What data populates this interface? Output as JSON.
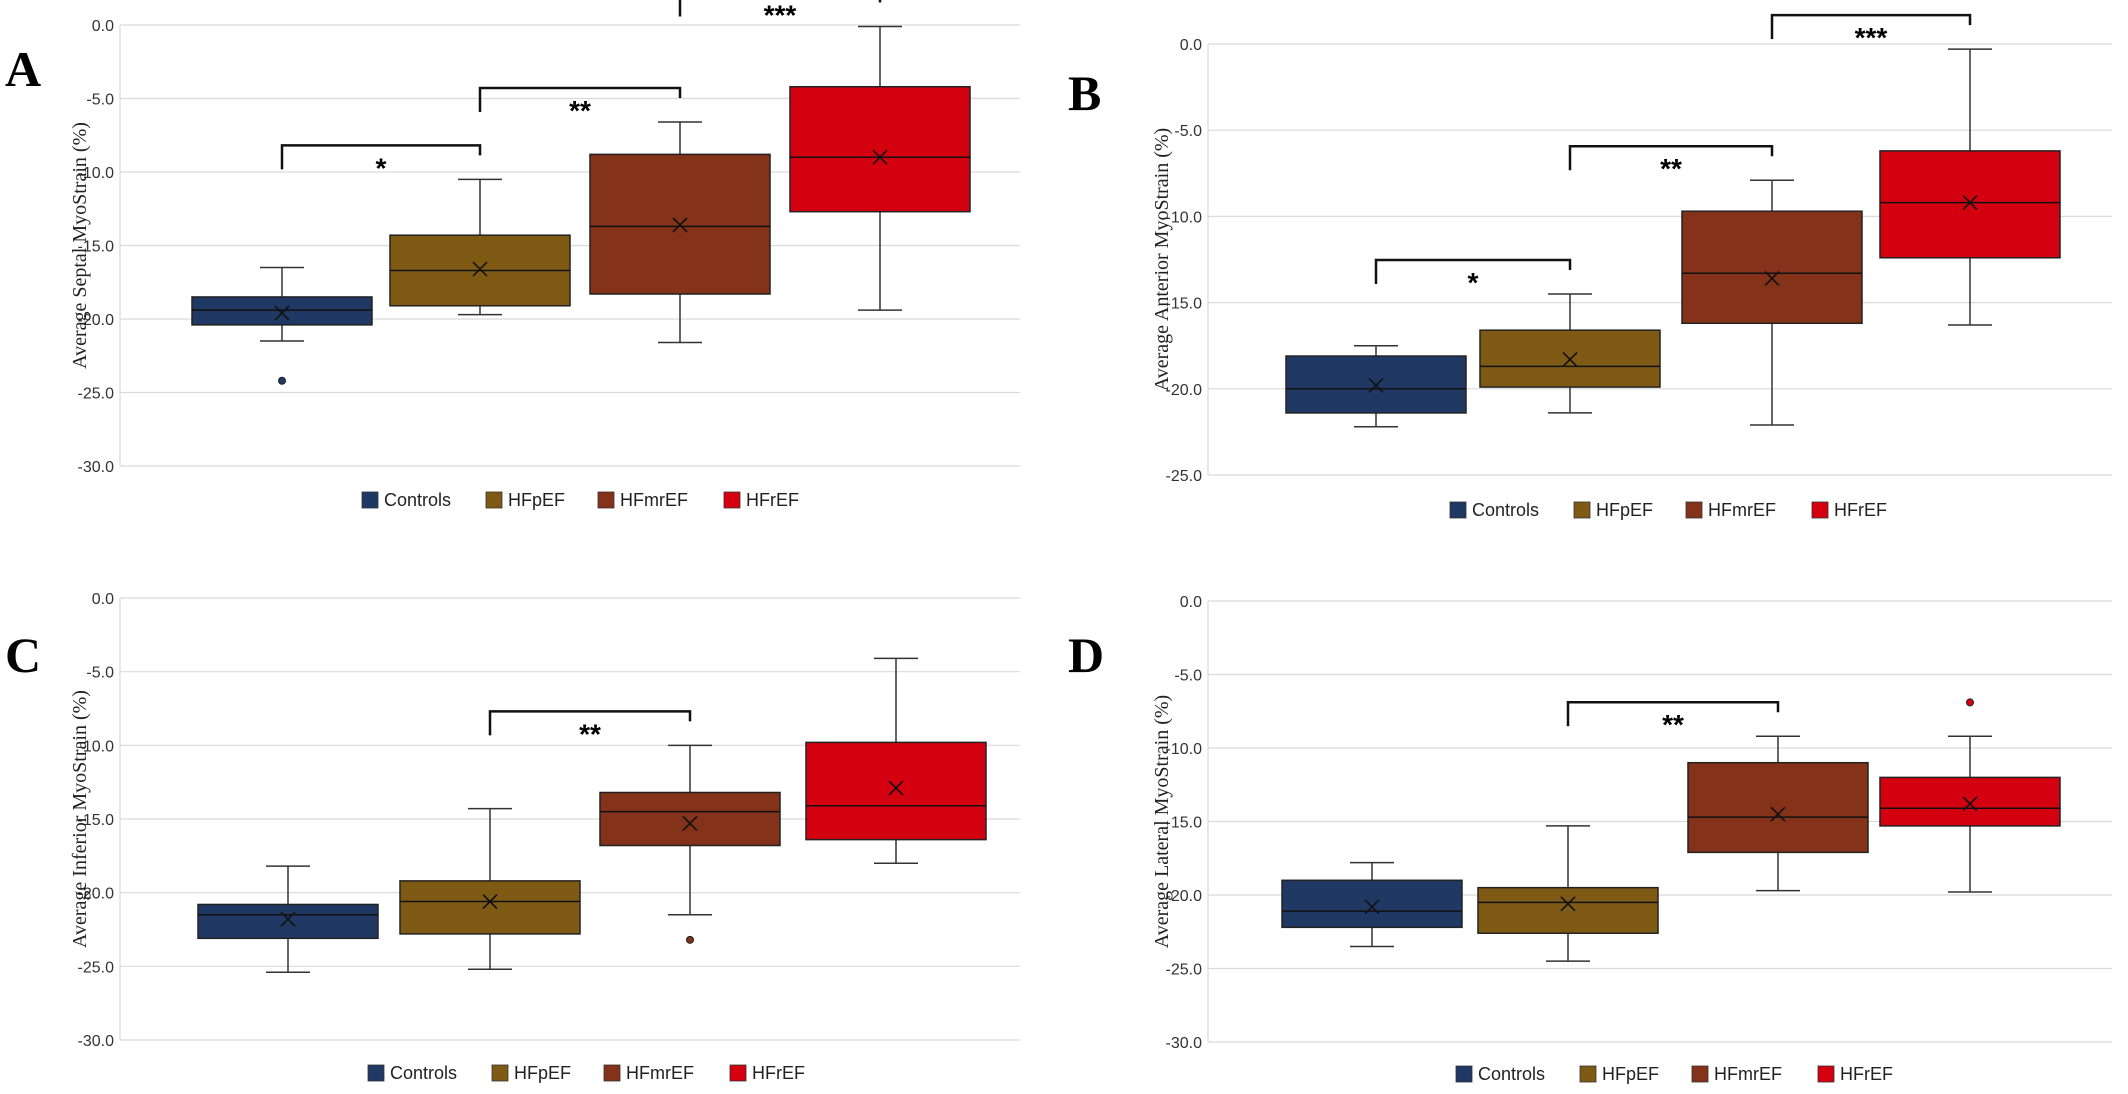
{
  "colors": {
    "Controls": "#1f3864",
    "HFpEF": "#7f5a14",
    "HFmrEF": "#843219",
    "HFrEF": "#d40010"
  },
  "chart_data": [
    {
      "panel": "A",
      "type": "box",
      "ylabel": "Average Septal MyoStrain (%)",
      "ylim": [
        -30,
        0
      ],
      "yticks": [
        "0.0",
        "-5.0",
        "-10.0",
        "-15.0",
        "-20.0",
        "-25.0",
        "-30.0"
      ],
      "grid": true,
      "legend": [
        "Controls",
        "HFpEF",
        "HFmrEF",
        "HFrEF"
      ],
      "legend_position": "bottom",
      "series": [
        {
          "name": "Controls",
          "whisker_low": -21.5,
          "q1": -20.4,
          "median": -19.4,
          "q3": -18.5,
          "whisker_high": -16.5,
          "mean": -19.6,
          "outliers": [
            -24.2
          ]
        },
        {
          "name": "HFpEF",
          "whisker_low": -19.7,
          "q1": -19.1,
          "median": -16.7,
          "q3": -14.3,
          "whisker_high": -10.5,
          "mean": -16.6,
          "outliers": []
        },
        {
          "name": "HFmrEF",
          "whisker_low": -21.6,
          "q1": -18.3,
          "median": -13.7,
          "q3": -8.8,
          "whisker_high": -6.6,
          "mean": -13.6,
          "outliers": []
        },
        {
          "name": "HFrEF",
          "whisker_low": -19.4,
          "q1": -12.7,
          "median": -9.0,
          "q3": -4.2,
          "whisker_high": -0.1,
          "mean": -9.0,
          "outliers": []
        }
      ],
      "significance": [
        {
          "from": "Controls",
          "to": "HFpEF",
          "label": "*"
        },
        {
          "from": "HFpEF",
          "to": "HFmrEF",
          "label": "**"
        },
        {
          "from": "HFmrEF",
          "to": "HFrEF",
          "label": "***"
        }
      ]
    },
    {
      "panel": "B",
      "type": "box",
      "ylabel": "Average Anterior MyoStrain (%)",
      "ylim": [
        -25,
        0
      ],
      "yticks": [
        "0.0",
        "-5.0",
        "-10.0",
        "-15.0",
        "-20.0",
        "-25.0"
      ],
      "grid": true,
      "legend": [
        "Controls",
        "HFpEF",
        "HFmrEF",
        "HFrEF"
      ],
      "legend_position": "bottom",
      "series": [
        {
          "name": "Controls",
          "whisker_low": -22.2,
          "q1": -21.4,
          "median": -20.0,
          "q3": -18.1,
          "whisker_high": -17.5,
          "mean": -19.8,
          "outliers": []
        },
        {
          "name": "HFpEF",
          "whisker_low": -21.4,
          "q1": -19.9,
          "median": -18.7,
          "q3": -16.6,
          "whisker_high": -14.5,
          "mean": -18.3,
          "outliers": []
        },
        {
          "name": "HFmrEF",
          "whisker_low": -22.1,
          "q1": -16.2,
          "median": -13.3,
          "q3": -9.7,
          "whisker_high": -7.9,
          "mean": -13.6,
          "outliers": []
        },
        {
          "name": "HFrEF",
          "whisker_low": -16.3,
          "q1": -12.4,
          "median": -9.2,
          "q3": -6.2,
          "whisker_high": -0.3,
          "mean": -9.2,
          "outliers": []
        }
      ],
      "significance": [
        {
          "from": "Controls",
          "to": "HFpEF",
          "label": "*"
        },
        {
          "from": "HFpEF",
          "to": "HFmrEF",
          "label": "**"
        },
        {
          "from": "HFmrEF",
          "to": "HFrEF",
          "label": "***"
        }
      ]
    },
    {
      "panel": "C",
      "type": "box",
      "ylabel": "Average Inferior MyoStrain (%)",
      "ylim": [
        -30,
        0
      ],
      "yticks": [
        "0.0",
        "-5.0",
        "-10.0",
        "-15.0",
        "-20.0",
        "-25.0",
        "-30.0"
      ],
      "grid": true,
      "legend": [
        "Controls",
        "HFpEF",
        "HFmrEF",
        "HFrEF"
      ],
      "legend_position": "bottom",
      "series": [
        {
          "name": "Controls",
          "whisker_low": -25.4,
          "q1": -23.1,
          "median": -21.5,
          "q3": -20.8,
          "whisker_high": -18.2,
          "mean": -21.8,
          "outliers": []
        },
        {
          "name": "HFpEF",
          "whisker_low": -25.2,
          "q1": -22.8,
          "median": -20.6,
          "q3": -19.2,
          "whisker_high": -14.3,
          "mean": -20.6,
          "outliers": []
        },
        {
          "name": "HFmrEF",
          "whisker_low": -21.5,
          "q1": -16.8,
          "median": -14.5,
          "q3": -13.2,
          "whisker_high": -10.0,
          "mean": -15.3,
          "outliers": [
            -23.2
          ]
        },
        {
          "name": "HFrEF",
          "whisker_low": -18.0,
          "q1": -16.4,
          "median": -14.1,
          "q3": -9.8,
          "whisker_high": -4.1,
          "mean": -12.9,
          "outliers": []
        }
      ],
      "significance": [
        {
          "from": "HFpEF",
          "to": "HFmrEF",
          "label": "**"
        }
      ]
    },
    {
      "panel": "D",
      "type": "box",
      "ylabel": "Average Lateral MyoStrain (%)",
      "ylim": [
        -30,
        0
      ],
      "yticks": [
        "0.0",
        "-5.0",
        "-10.0",
        "-15.0",
        "-20.0",
        "-25.0",
        "-30.0"
      ],
      "grid": true,
      "legend": [
        "Controls",
        "HFpEF",
        "HFmrEF",
        "HFrEF"
      ],
      "legend_position": "bottom",
      "series": [
        {
          "name": "Controls",
          "whisker_low": -23.5,
          "q1": -22.2,
          "median": -21.1,
          "q3": -19.0,
          "whisker_high": -17.8,
          "mean": -20.8,
          "outliers": []
        },
        {
          "name": "HFpEF",
          "whisker_low": -24.5,
          "q1": -22.6,
          "median": -20.5,
          "q3": -19.5,
          "whisker_high": -15.3,
          "mean": -20.6,
          "outliers": []
        },
        {
          "name": "HFmrEF",
          "whisker_low": -19.7,
          "q1": -17.1,
          "median": -14.7,
          "q3": -11.0,
          "whisker_high": -9.2,
          "mean": -14.5,
          "outliers": []
        },
        {
          "name": "HFrEF",
          "whisker_low": -19.8,
          "q1": -15.3,
          "median": -14.1,
          "q3": -12.0,
          "whisker_high": -9.2,
          "mean": -13.8,
          "outliers": [
            -6.9
          ]
        }
      ],
      "significance": [
        {
          "from": "HFpEF",
          "to": "HFmrEF",
          "label": "**"
        }
      ]
    }
  ]
}
